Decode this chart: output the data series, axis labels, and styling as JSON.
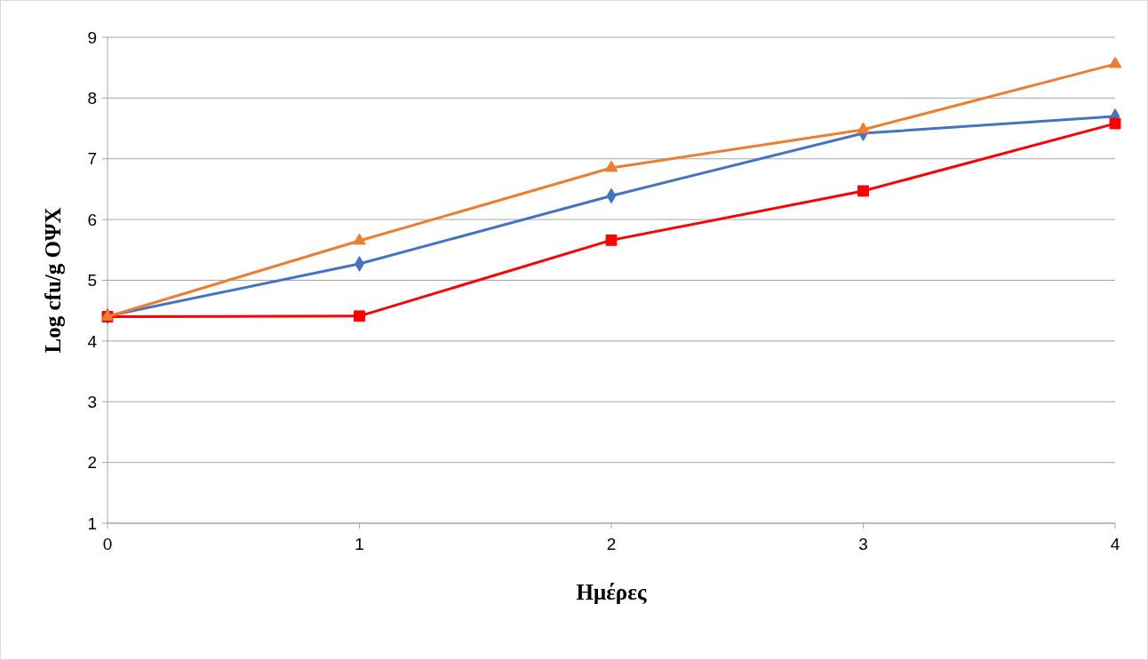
{
  "chart_data": {
    "type": "line",
    "xlabel": "Ημέρες",
    "ylabel": "Log cfu/g ΟΨΧ",
    "x": [
      0,
      1,
      2,
      3,
      4
    ],
    "xlim": [
      0,
      4
    ],
    "xticks": [
      0,
      1,
      2,
      3,
      4
    ],
    "ylim": [
      1,
      9
    ],
    "yticks": [
      1,
      2,
      3,
      4,
      5,
      6,
      7,
      8,
      9
    ],
    "grid": "y",
    "series": [
      {
        "color": "#4472c4",
        "marker": "diamond",
        "values": [
          4.41,
          5.27,
          6.39,
          7.42,
          7.7
        ]
      },
      {
        "color": "#ff0000",
        "marker": "square",
        "values": [
          4.4,
          4.41,
          5.66,
          6.47,
          7.58
        ]
      },
      {
        "color": "#ed7d31",
        "marker": "triangle",
        "values": [
          4.4,
          5.65,
          6.85,
          7.48,
          8.56
        ]
      }
    ]
  }
}
